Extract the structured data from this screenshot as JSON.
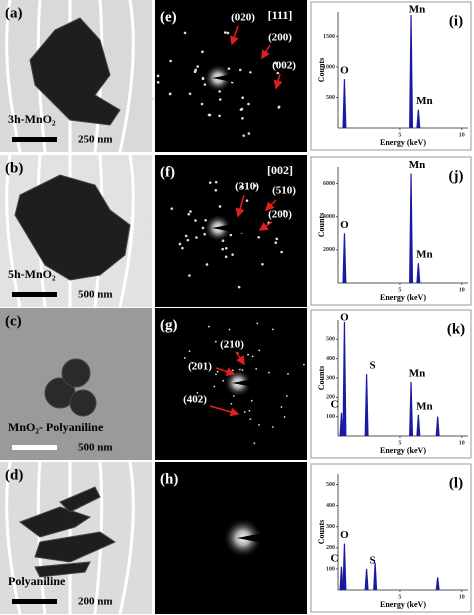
{
  "tem": [
    {
      "label": "(a)",
      "caption": "3h-MnO₂",
      "scale": "250 nm"
    },
    {
      "label": "(b)",
      "caption": "5h-MnO₂",
      "scale": "500 nm"
    },
    {
      "label": "(c)",
      "caption": "MnO₂- Polyaniline",
      "scale": "500 nm"
    },
    {
      "label": "(d)",
      "caption": "Polyaniline",
      "scale": "200 nm"
    }
  ],
  "saed": [
    {
      "label": "(e)",
      "zone": "[111]",
      "spots": [
        "(020)",
        "(200)",
        "(002)"
      ]
    },
    {
      "label": "(f)",
      "zone": "[002]",
      "spots": [
        "(310)",
        "(510)",
        "(200)"
      ]
    },
    {
      "label": "(g)",
      "spots": [
        "(210)",
        "(201)",
        "(402)"
      ]
    },
    {
      "label": "(h)"
    }
  ],
  "edx": [
    {
      "label": "(i)",
      "ylabel": "Counts",
      "xlabel": "Energy (keV)",
      "ylim": [
        0,
        1900
      ],
      "yticks": [
        500,
        1000,
        1500
      ],
      "xlim": [
        0,
        10.5
      ],
      "xticks": [
        5,
        10
      ],
      "peaks": [
        {
          "x": 0.52,
          "counts": 800,
          "label": "O"
        },
        {
          "x": 5.9,
          "counts": 1850,
          "label": "Mn"
        },
        {
          "x": 6.49,
          "counts": 300,
          "label": "Mn"
        }
      ]
    },
    {
      "label": "(j)",
      "ylabel": "Counts",
      "xlabel": "Energy (keV)",
      "ylim": [
        0,
        7000
      ],
      "yticks": [
        2000,
        4000,
        6000
      ],
      "xlim": [
        0,
        10.5
      ],
      "xticks": [
        5,
        10
      ],
      "peaks": [
        {
          "x": 0.52,
          "counts": 3000,
          "label": "O"
        },
        {
          "x": 5.9,
          "counts": 6600,
          "label": "Mn"
        },
        {
          "x": 6.49,
          "counts": 1200,
          "label": "Mn"
        }
      ]
    },
    {
      "label": "(k)",
      "ylabel": "Counts",
      "xlabel": "Energy (keV)",
      "ylim": [
        0,
        600
      ],
      "yticks": [
        100,
        200,
        300,
        400,
        500
      ],
      "xlim": [
        0,
        10.5
      ],
      "xticks": [
        5,
        10
      ],
      "peaks": [
        {
          "x": 0.28,
          "counts": 120,
          "label": "C"
        },
        {
          "x": 0.52,
          "counts": 590,
          "label": "O"
        },
        {
          "x": 2.31,
          "counts": 320,
          "label": "S"
        },
        {
          "x": 5.9,
          "counts": 280,
          "label": "Mn"
        },
        {
          "x": 6.49,
          "counts": 110,
          "label": "Mn"
        },
        {
          "x": 8.05,
          "counts": 100
        }
      ]
    },
    {
      "label": "(l)",
      "ylabel": "Counts",
      "xlabel": "Energy (keV)",
      "ylim": [
        0,
        550
      ],
      "yticks": [
        100,
        200,
        300,
        400,
        500
      ],
      "xlim": [
        0,
        10.5
      ],
      "xticks": [
        5,
        10
      ],
      "peaks": [
        {
          "x": 0.28,
          "counts": 110,
          "label": "C"
        },
        {
          "x": 0.52,
          "counts": 220,
          "label": "O"
        },
        {
          "x": 2.31,
          "counts": 100,
          "label": "S"
        },
        {
          "x": 3.0,
          "counts": 130
        },
        {
          "x": 8.05,
          "counts": 60
        }
      ]
    }
  ]
}
